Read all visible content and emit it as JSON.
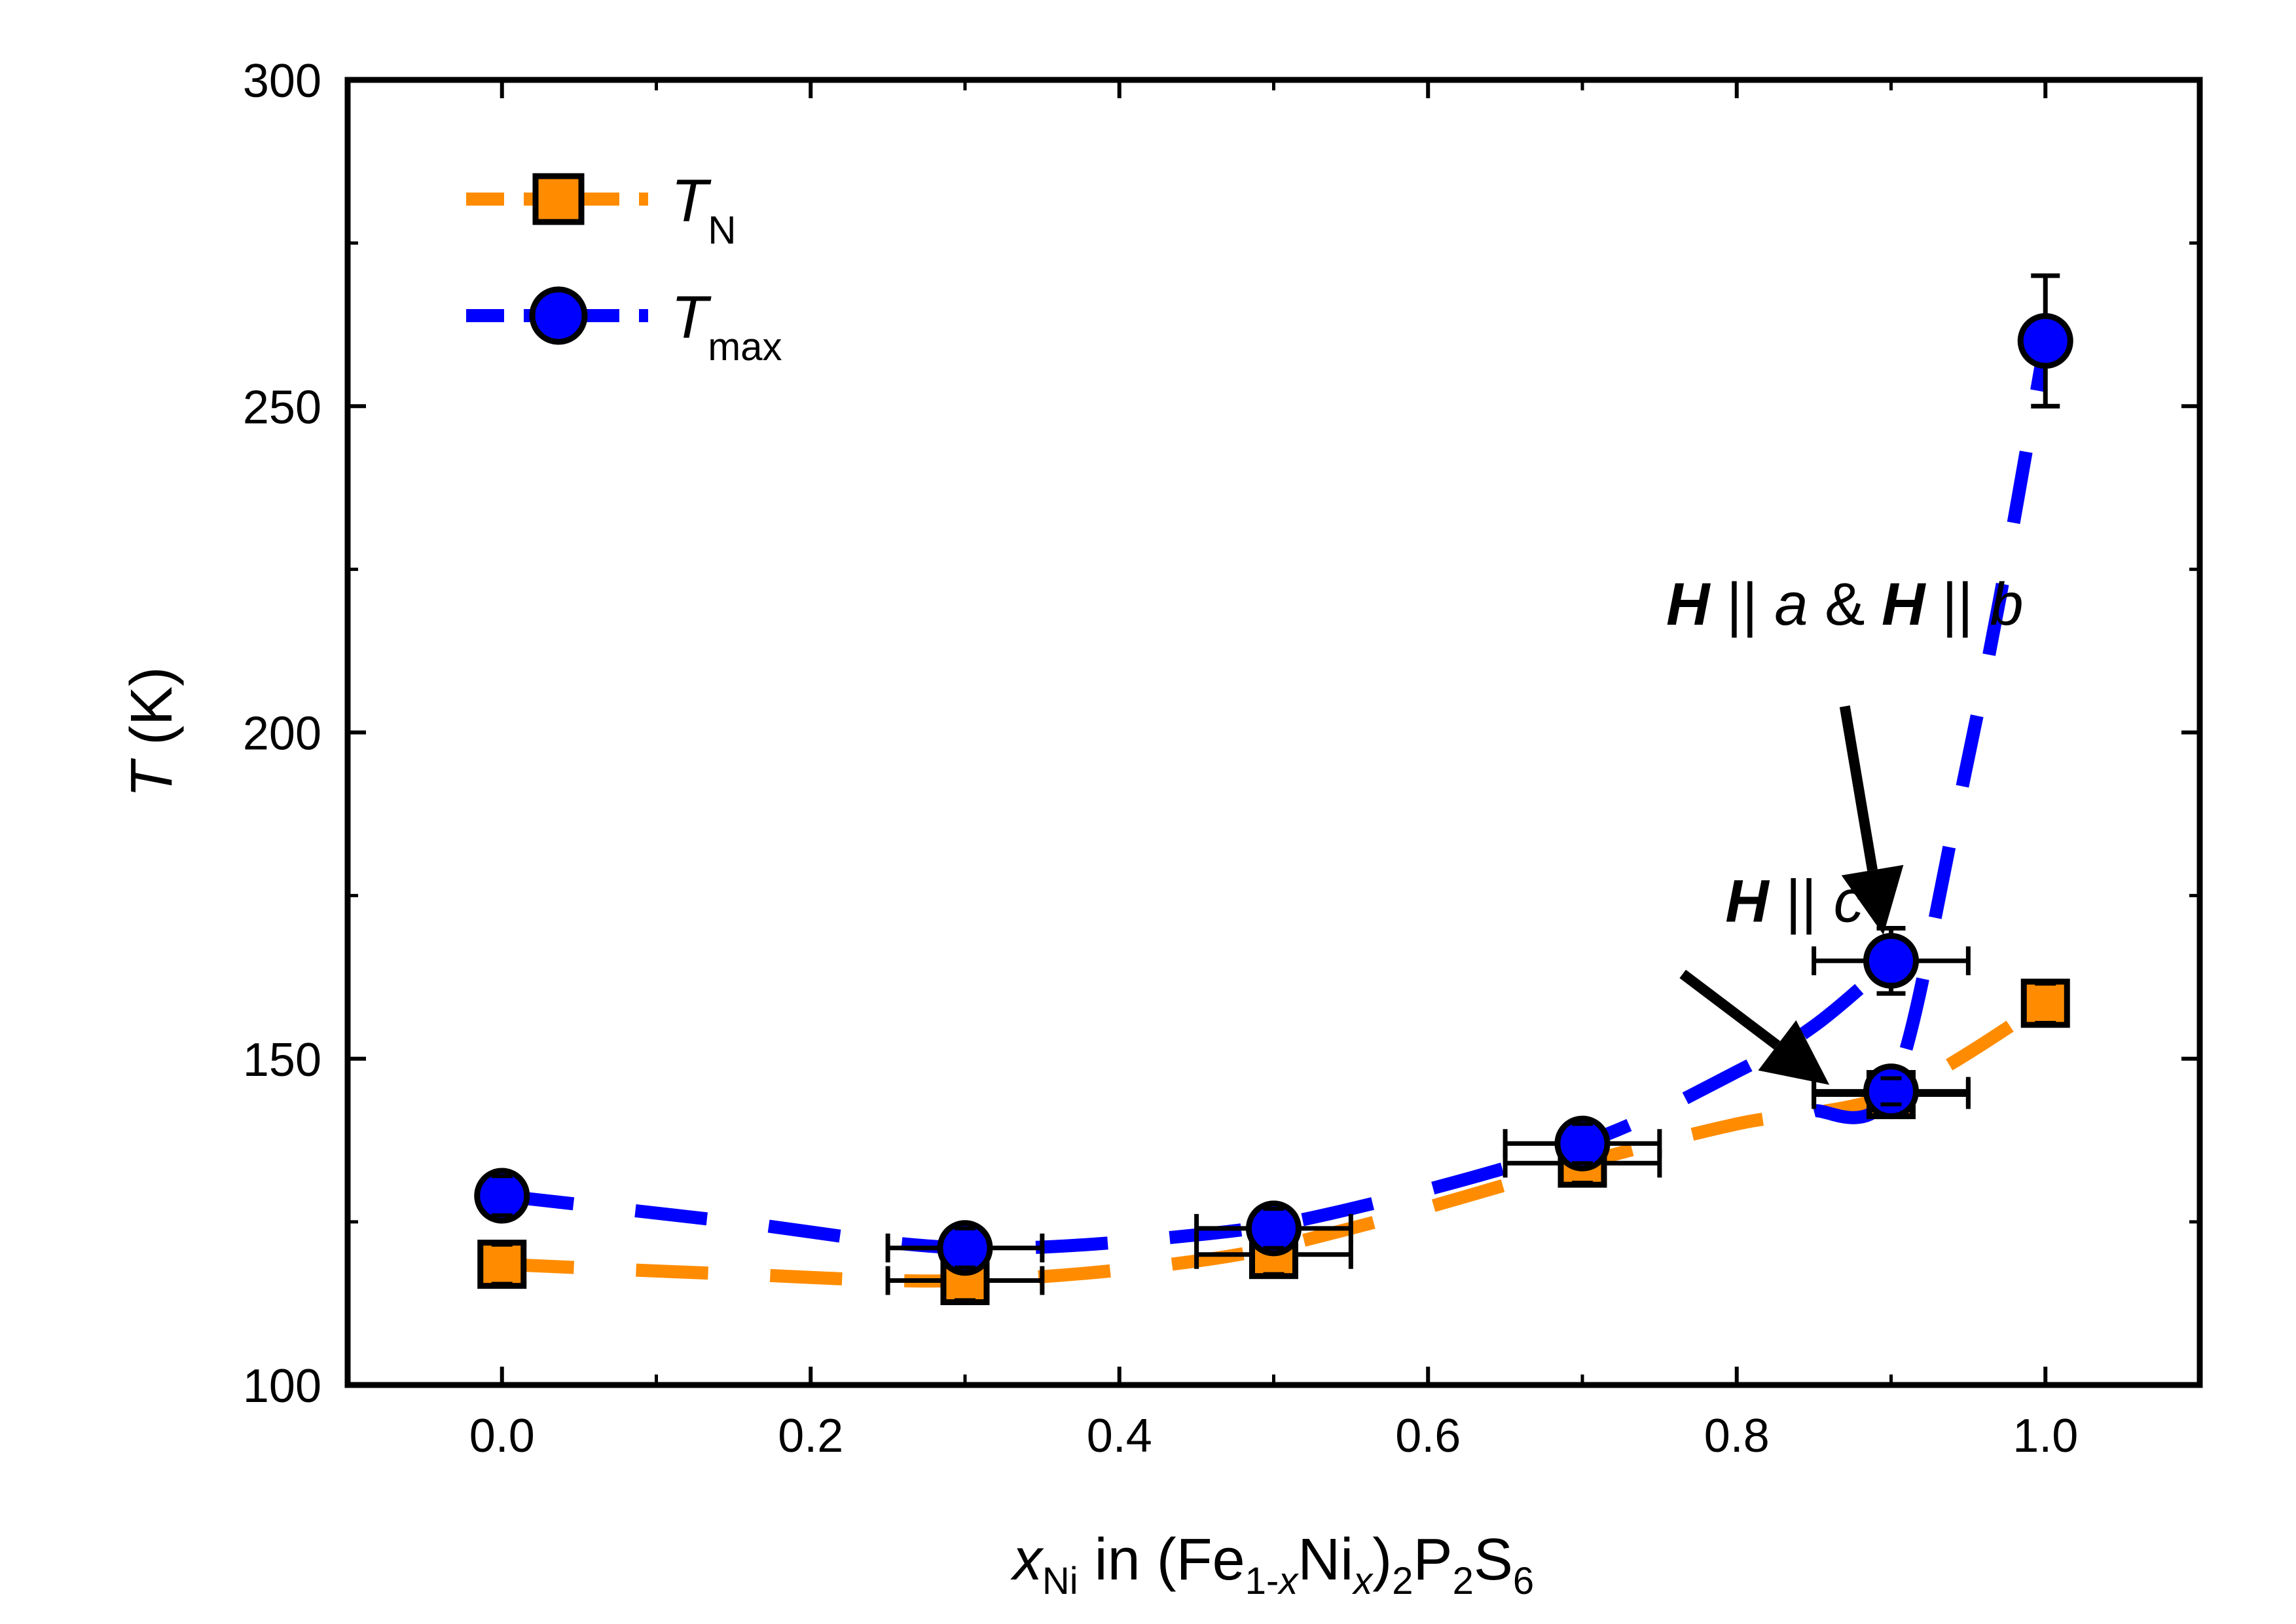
{
  "chart_data": {
    "type": "scatter",
    "xlabel": {
      "var": "x",
      "var_sub": "Ni",
      "mid": " in (Fe",
      "sub1_a": "1-",
      "sub1_b": "x",
      "ni": "Ni",
      "sub2": "x",
      "close": ")",
      "sub3": "2",
      "p": "P",
      "sub4": "2",
      "s": "S",
      "sub5": "6"
    },
    "ylabel": {
      "var": "T",
      "unit": " (K)"
    },
    "xlim": [
      -0.1,
      1.1
    ],
    "ylim": [
      100,
      300
    ],
    "xticks": [
      0.0,
      0.2,
      0.4,
      0.6,
      0.8,
      1.0
    ],
    "xtick_labels": [
      "0.0",
      "0.2",
      "0.4",
      "0.6",
      "0.8",
      "1.0"
    ],
    "yticks": [
      100,
      150,
      200,
      250,
      300
    ],
    "ytick_labels": [
      "100",
      "150",
      "200",
      "250",
      "300"
    ],
    "series": [
      {
        "name": "T_N",
        "label_main": "T",
        "label_sub": "N",
        "color": "#FF8C00",
        "marker": "square",
        "points": [
          {
            "x": 0.0,
            "y": 118.5,
            "xerr": 0,
            "yerr": 3
          },
          {
            "x": 0.3,
            "y": 116,
            "xerr": 0.05,
            "yerr": 3
          },
          {
            "x": 0.5,
            "y": 120,
            "xerr": 0.05,
            "yerr": 3
          },
          {
            "x": 0.7,
            "y": 134,
            "xerr": 0.05,
            "yerr": 3
          },
          {
            "x": 0.9,
            "y": 144.5,
            "xerr": 0.05,
            "yerr": 2
          },
          {
            "x": 1.0,
            "y": 158.5,
            "xerr": 0,
            "yerr": 3
          }
        ],
        "curve": [
          {
            "x": 0.0,
            "y": 118.5
          },
          {
            "x": 0.15,
            "y": 117
          },
          {
            "x": 0.3,
            "y": 116
          },
          {
            "x": 0.45,
            "y": 119
          },
          {
            "x": 0.55,
            "y": 124
          },
          {
            "x": 0.7,
            "y": 134
          },
          {
            "x": 0.8,
            "y": 140
          },
          {
            "x": 0.9,
            "y": 144.5
          },
          {
            "x": 1.0,
            "y": 158.5
          }
        ]
      },
      {
        "name": "T_max",
        "label_main": "T",
        "label_sub": "max",
        "color": "#0000FF",
        "marker": "circle",
        "points": [
          {
            "x": 0.0,
            "y": 129,
            "xerr": 0,
            "yerr": 3
          },
          {
            "x": 0.3,
            "y": 121,
            "xerr": 0.05,
            "yerr": 3
          },
          {
            "x": 0.5,
            "y": 124,
            "xerr": 0.05,
            "yerr": 3
          },
          {
            "x": 0.7,
            "y": 137,
            "xerr": 0.05,
            "yerr": 3
          },
          {
            "x": 0.9,
            "y": 165,
            "xerr": 0.05,
            "yerr": 5
          },
          {
            "x": 0.9,
            "y": 145,
            "xerr": 0.05,
            "yerr": 2
          },
          {
            "x": 1.0,
            "y": 260,
            "xerr": 0,
            "yerr": 10
          }
        ],
        "curve": [
          {
            "x": 0.0,
            "y": 129
          },
          {
            "x": 0.15,
            "y": 125
          },
          {
            "x": 0.3,
            "y": 121
          },
          {
            "x": 0.45,
            "y": 123
          },
          {
            "x": 0.55,
            "y": 127
          },
          {
            "x": 0.7,
            "y": 137
          },
          {
            "x": 0.8,
            "y": 148
          },
          {
            "x": 0.85,
            "y": 155
          },
          {
            "x": 0.9,
            "y": 165
          }
        ],
        "curve2": [
          {
            "x": 0.85,
            "y": 142
          },
          {
            "x": 0.9,
            "y": 145
          },
          {
            "x": 0.94,
            "y": 185
          },
          {
            "x": 0.97,
            "y": 220
          },
          {
            "x": 1.0,
            "y": 260
          }
        ]
      }
    ],
    "annotations": [
      {
        "parts": [
          {
            "t": "H",
            "style": "bolditalic"
          },
          {
            "t": " || ",
            "style": "normal"
          },
          {
            "t": "a",
            "style": "italic"
          },
          {
            "t": " & ",
            "style": "normal"
          },
          {
            "t": "H",
            "style": "bolditalic"
          },
          {
            "t": " || ",
            "style": "normal"
          },
          {
            "t": "b",
            "style": "italic"
          }
        ],
        "text_x": 0.87,
        "text_y": 216.5,
        "arrow_from": {
          "x": 0.87,
          "y": 204
        },
        "arrow_to": {
          "x": 0.895,
          "y": 169
        }
      },
      {
        "parts": [
          {
            "t": "H",
            "style": "bolditalic"
          },
          {
            "t": " || ",
            "style": "normal"
          },
          {
            "t": "c*",
            "style": "italic"
          }
        ],
        "text_x": 0.845,
        "text_y": 171,
        "arrow_from": {
          "x": 0.765,
          "y": 163
        },
        "arrow_to": {
          "x": 0.86,
          "y": 146
        }
      }
    ]
  }
}
